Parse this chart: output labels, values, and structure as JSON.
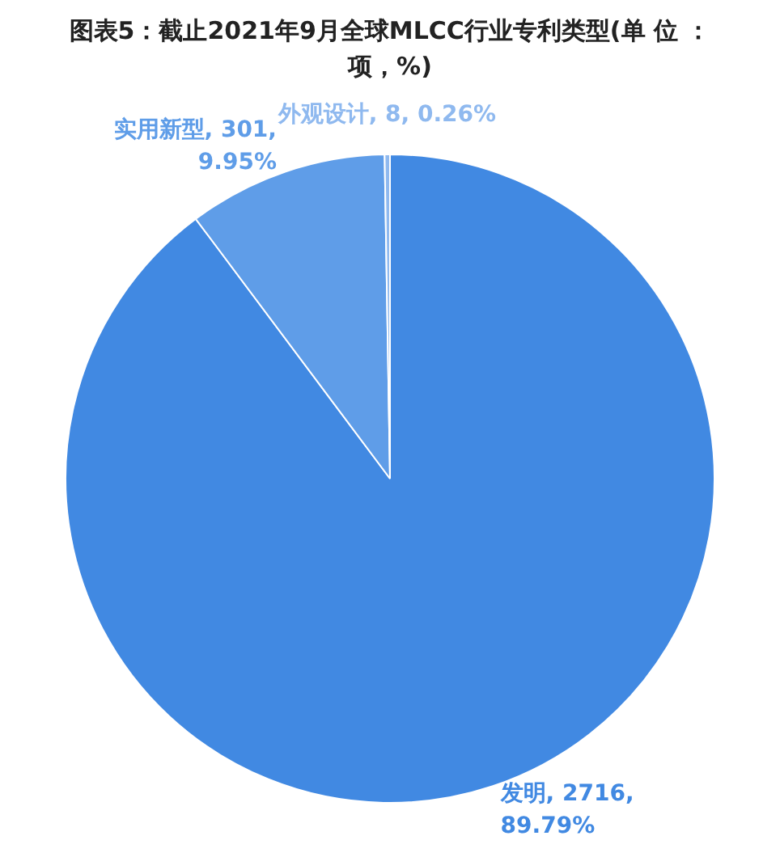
{
  "chart_data": {
    "type": "pie",
    "title": "图表5：截止2021年9月全球MLCC行业专利类型(单 位 ：项，%)",
    "categories": [
      "发明",
      "实用新型",
      "外观设计"
    ],
    "values": [
      2716,
      301,
      8
    ],
    "value_labels": [
      "2716, 89.79%",
      "301, 9.95%",
      "8, 0.26%"
    ],
    "colors": [
      "#4189e2",
      "#5f9de8",
      "#8fb9ef"
    ],
    "legend": false
  }
}
